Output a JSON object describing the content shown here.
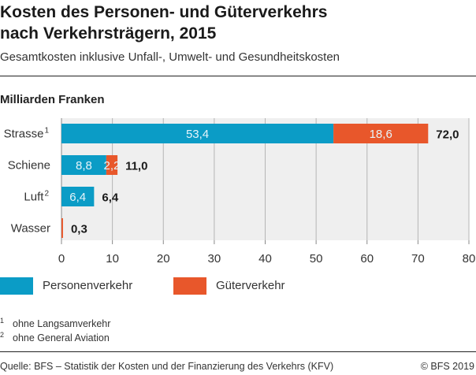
{
  "chart_data": {
    "type": "bar",
    "orientation": "horizontal",
    "stacked": true,
    "title": "Kosten des Personen- und Güterverkehrs nach Verkehrsträgern, 2015",
    "title_lines": [
      "Kosten des Personen- und Güterverkehrs",
      "nach Verkehrsträgern, 2015"
    ],
    "subtitle": "Gesamtkosten inklusive Unfall-, Umwelt- und Gesundheitskosten",
    "unit_label": "Milliarden Franken",
    "categories": [
      "Strasse",
      "Schiene",
      "Luft",
      "Wasser"
    ],
    "category_superscripts": [
      "1",
      "",
      "2",
      ""
    ],
    "series": [
      {
        "name": "Personenverkehr",
        "color": "#0b9cc6",
        "values": [
          53.4,
          8.8,
          6.4,
          0.0
        ],
        "labels": [
          "53,4",
          "8,8",
          "6,4",
          ""
        ]
      },
      {
        "name": "Güterverkehr",
        "color": "#e8572b",
        "values": [
          18.6,
          2.2,
          0.0,
          0.3
        ],
        "labels": [
          "18,6",
          "2,2",
          "",
          ""
        ]
      }
    ],
    "totals": [
      "72,0",
      "11,0",
      "6,4",
      "0,3"
    ],
    "xlim": [
      0,
      80
    ],
    "xticks": [
      0,
      10,
      20,
      30,
      40,
      50,
      60,
      70,
      80
    ],
    "grid": true,
    "plot_background": "#efefef",
    "legend_position": "bottom-left"
  },
  "footnotes": [
    {
      "mark": "1",
      "text": "ohne Langsamverkehr"
    },
    {
      "mark": "2",
      "text": "ohne General Aviation"
    }
  ],
  "source": "Quelle: BFS – Statistik der Kosten und der Finanzierung des Verkehrs (KFV)",
  "copyright": "© BFS 2019"
}
